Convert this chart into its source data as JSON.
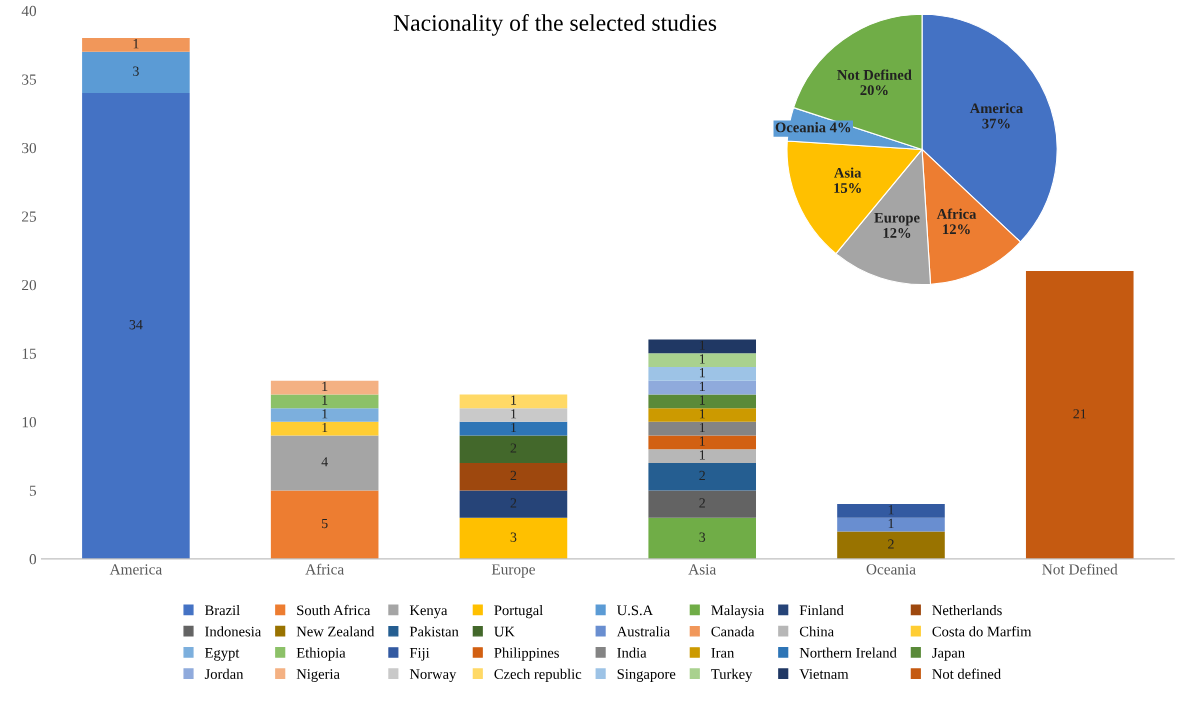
{
  "chart_data": [
    {
      "type": "bar",
      "title": "Nacionality of the selected studies",
      "stacked": true,
      "categories": [
        "America",
        "Africa",
        "Europe",
        "Asia",
        "Oceania",
        "Not Defined"
      ],
      "ylim": [
        0,
        40
      ],
      "yticks": [
        0,
        5,
        10,
        15,
        20,
        25,
        30,
        35,
        40
      ],
      "data_labels": true,
      "legend": "bottom",
      "series": [
        {
          "name": "Brazil",
          "color": "#4472c4",
          "values": [
            34,
            null,
            null,
            null,
            null,
            null
          ]
        },
        {
          "name": "South Africa",
          "color": "#ed7d31",
          "values": [
            null,
            5,
            null,
            null,
            null,
            null
          ]
        },
        {
          "name": "Kenya",
          "color": "#a5a5a5",
          "values": [
            null,
            4,
            null,
            null,
            null,
            null
          ]
        },
        {
          "name": "Portugal",
          "color": "#ffc000",
          "values": [
            null,
            null,
            3,
            null,
            null,
            null
          ]
        },
        {
          "name": "U.S.A",
          "color": "#5b9bd5",
          "values": [
            3,
            null,
            null,
            null,
            null,
            null
          ]
        },
        {
          "name": "Malaysia",
          "color": "#70ad47",
          "values": [
            null,
            null,
            null,
            3,
            null,
            null
          ]
        },
        {
          "name": "Finland",
          "color": "#264478",
          "values": [
            null,
            null,
            2,
            null,
            null,
            null
          ]
        },
        {
          "name": "Netherlands",
          "color": "#9e480e",
          "values": [
            null,
            null,
            2,
            null,
            null,
            null
          ]
        },
        {
          "name": "Indonesia",
          "color": "#636363",
          "values": [
            null,
            null,
            null,
            2,
            null,
            null
          ]
        },
        {
          "name": "New Zealand",
          "color": "#997300",
          "values": [
            null,
            null,
            null,
            null,
            2,
            null
          ]
        },
        {
          "name": "Pakistan",
          "color": "#255e91",
          "values": [
            null,
            null,
            null,
            2,
            null,
            null
          ]
        },
        {
          "name": "UK",
          "color": "#43682b",
          "values": [
            null,
            null,
            2,
            null,
            null,
            null
          ]
        },
        {
          "name": "Australia",
          "color": "#698ed0",
          "values": [
            null,
            null,
            null,
            null,
            1,
            null
          ]
        },
        {
          "name": "Canada",
          "color": "#f1975a",
          "values": [
            1,
            null,
            null,
            null,
            null,
            null
          ]
        },
        {
          "name": "China",
          "color": "#b7b7b7",
          "values": [
            null,
            null,
            null,
            1,
            null,
            null
          ]
        },
        {
          "name": "Costa do Marfim",
          "color": "#ffcd33",
          "values": [
            null,
            1,
            null,
            null,
            null,
            null
          ]
        },
        {
          "name": "Egypt",
          "color": "#7cafdd",
          "values": [
            null,
            1,
            null,
            null,
            null,
            null
          ]
        },
        {
          "name": "Ethiopia",
          "color": "#8cc168",
          "values": [
            null,
            1,
            null,
            null,
            null,
            null
          ]
        },
        {
          "name": "Fiji",
          "color": "#335aa1",
          "values": [
            null,
            null,
            null,
            null,
            1,
            null
          ]
        },
        {
          "name": "Philippines",
          "color": "#d26012",
          "values": [
            null,
            null,
            null,
            1,
            null,
            null
          ]
        },
        {
          "name": "India",
          "color": "#848484",
          "values": [
            null,
            null,
            null,
            1,
            null,
            null
          ]
        },
        {
          "name": "Iran",
          "color": "#cc9a00",
          "values": [
            null,
            null,
            null,
            1,
            null,
            null
          ]
        },
        {
          "name": "Northern Ireland",
          "color": "#2e75b6",
          "values": [
            null,
            null,
            1,
            null,
            null,
            null
          ]
        },
        {
          "name": "Japan",
          "color": "#5a8a39",
          "values": [
            null,
            null,
            null,
            1,
            null,
            null
          ]
        },
        {
          "name": "Jordan",
          "color": "#8faadc",
          "values": [
            null,
            null,
            null,
            1,
            null,
            null
          ]
        },
        {
          "name": "Nigeria",
          "color": "#f4b183",
          "values": [
            null,
            1,
            null,
            null,
            null,
            null
          ]
        },
        {
          "name": "Norway",
          "color": "#c9c9c9",
          "values": [
            null,
            null,
            1,
            null,
            null,
            null
          ]
        },
        {
          "name": "Czech republic",
          "color": "#ffd966",
          "values": [
            null,
            null,
            1,
            null,
            null,
            null
          ]
        },
        {
          "name": "Singapore",
          "color": "#9dc3e6",
          "values": [
            null,
            null,
            null,
            1,
            null,
            null
          ]
        },
        {
          "name": "Turkey",
          "color": "#a9d18e",
          "values": [
            null,
            null,
            null,
            1,
            null,
            null
          ]
        },
        {
          "name": "Vietnam",
          "color": "#203864",
          "values": [
            null,
            null,
            null,
            1,
            null,
            null
          ]
        },
        {
          "name": "Not defined",
          "color": "#c55a11",
          "values": [
            null,
            null,
            null,
            null,
            null,
            21
          ]
        }
      ]
    },
    {
      "type": "pie",
      "categories": [
        "America",
        "Africa",
        "Europe",
        "Asia",
        "Oceania",
        "Not Defined"
      ],
      "values": [
        37,
        12,
        12,
        15,
        4,
        20
      ],
      "value_labels": [
        "37%",
        "12%",
        "12%",
        "15%",
        "4%",
        "20%"
      ],
      "colors": [
        "#4472c4",
        "#ed7d31",
        "#a5a5a5",
        "#ffc000",
        "#5b9bd5",
        "#70ad47"
      ]
    }
  ]
}
